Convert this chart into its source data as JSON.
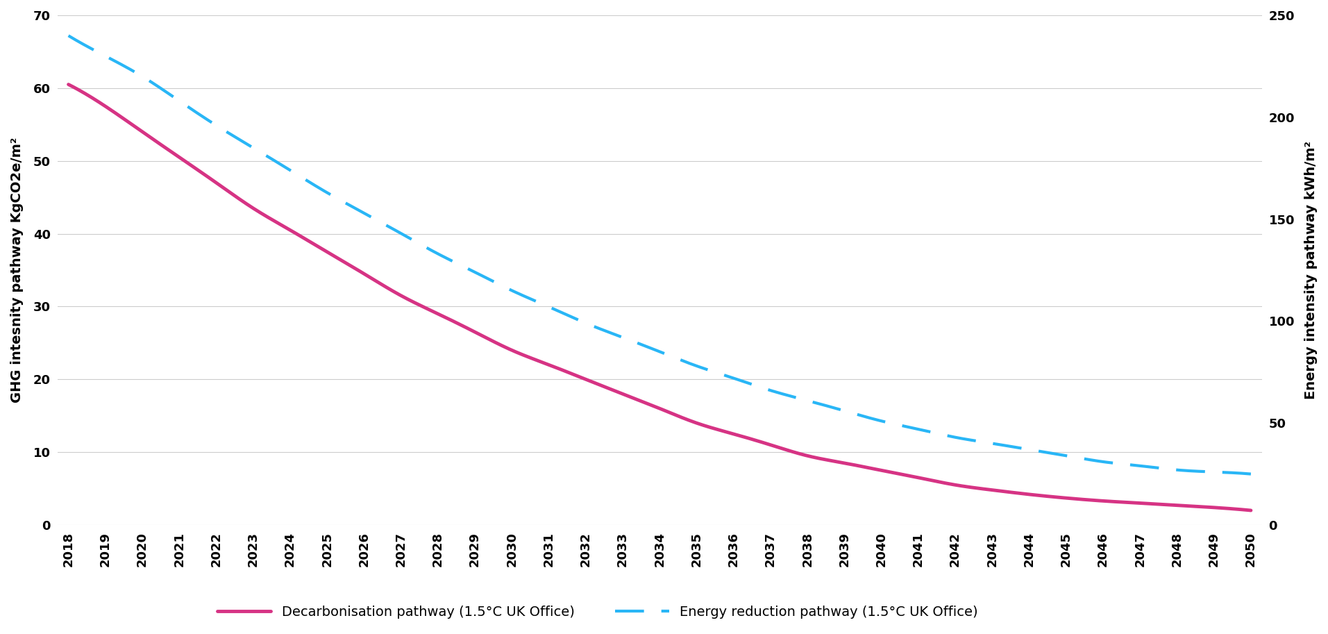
{
  "years": [
    2018,
    2019,
    2020,
    2021,
    2022,
    2023,
    2024,
    2025,
    2026,
    2027,
    2028,
    2029,
    2030,
    2031,
    2032,
    2033,
    2034,
    2035,
    2036,
    2037,
    2038,
    2039,
    2040,
    2041,
    2042,
    2043,
    2044,
    2045,
    2046,
    2047,
    2048,
    2049,
    2050
  ],
  "ghg_values": [
    60.5,
    57.5,
    54.0,
    50.5,
    47.0,
    43.5,
    40.5,
    37.5,
    34.5,
    31.5,
    29.0,
    26.5,
    24.0,
    22.0,
    20.0,
    18.0,
    16.0,
    14.0,
    12.5,
    11.0,
    9.5,
    8.5,
    7.5,
    6.5,
    5.5,
    4.8,
    4.2,
    3.7,
    3.3,
    3.0,
    2.7,
    2.4,
    2.0
  ],
  "energy_values": [
    240,
    230,
    220,
    208,
    196,
    185,
    174,
    163,
    153,
    143,
    133,
    124,
    115,
    107,
    99,
    92,
    85,
    78,
    72,
    66,
    61,
    56,
    51,
    47,
    43,
    40,
    37,
    34,
    31,
    29,
    27,
    26,
    25
  ],
  "ghg_color": "#d63384",
  "energy_color": "#29b6f6",
  "left_ylabel": "GHG intesnity pathway KgCO2e/m²",
  "right_ylabel": "Energy intensity pathway kWh/m²",
  "left_ylim": [
    0,
    70
  ],
  "right_ylim": [
    0,
    250
  ],
  "left_yticks": [
    0,
    10,
    20,
    30,
    40,
    50,
    60,
    70
  ],
  "right_yticks": [
    0,
    50,
    100,
    150,
    200,
    250
  ],
  "legend_ghg": "Decarbonisation pathway (1.5°C UK Office)",
  "legend_energy": "Energy reduction pathway (1.5°C UK Office)",
  "background_color": "#ffffff",
  "grid_color": "#cccccc",
  "tick_fontsize": 13,
  "label_fontsize": 14
}
